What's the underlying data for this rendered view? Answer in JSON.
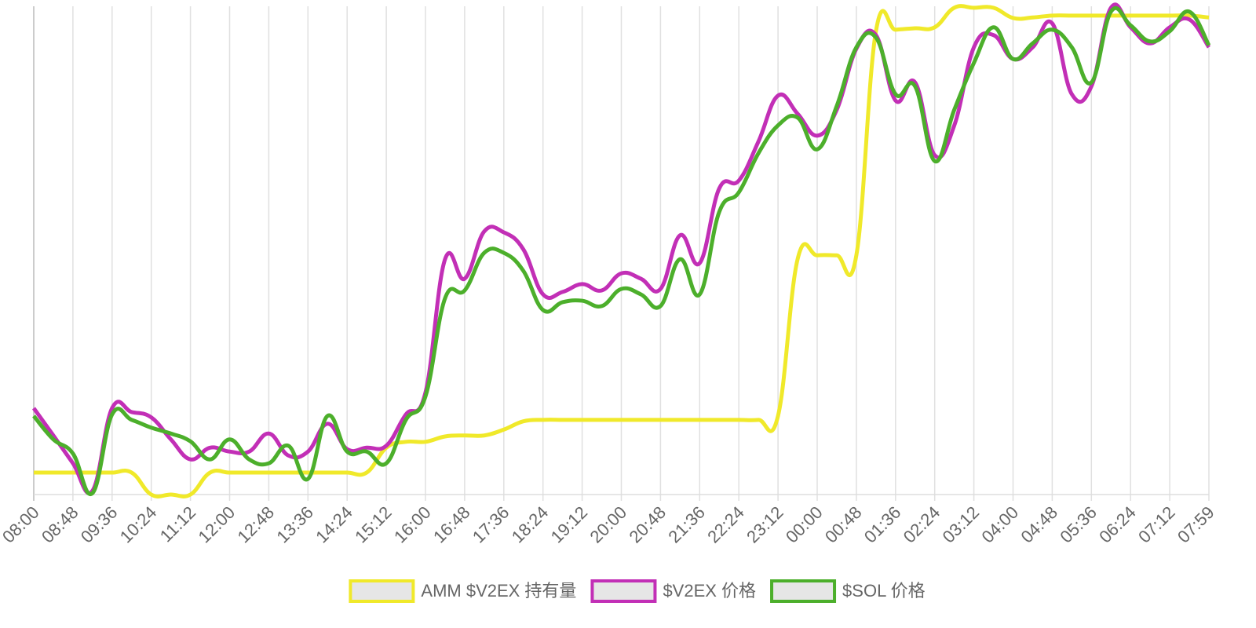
{
  "chart_data": {
    "type": "line",
    "categories": [
      "08:00",
      null,
      "08:48",
      null,
      "09:36",
      null,
      "10:24",
      null,
      "11:12",
      null,
      "12:00",
      null,
      "12:48",
      null,
      "13:36",
      null,
      "14:24",
      null,
      "15:12",
      null,
      "16:00",
      null,
      "16:48",
      null,
      "17:36",
      null,
      "18:24",
      null,
      "19:12",
      null,
      "20:00",
      null,
      "20:48",
      null,
      "21:36",
      null,
      "22:24",
      null,
      "23:12",
      null,
      "00:00",
      null,
      "00:48",
      null,
      "01:36",
      null,
      "02:24",
      null,
      "03:12",
      null,
      "04:00",
      null,
      "04:48",
      null,
      "05:36",
      null,
      "06:24",
      null,
      "07:12",
      null,
      "07:59"
    ],
    "ylim": [
      0,
      100
    ],
    "grid": true,
    "legend": "bottom",
    "series": [
      {
        "name": "AMM $V2EX 持有量",
        "color": "#f0e92a",
        "values": [
          4.5,
          4.5,
          4.5,
          4.5,
          4.5,
          4.5,
          0,
          0,
          0,
          4.5,
          4.5,
          4.5,
          4.5,
          4.5,
          4.5,
          4.5,
          4.5,
          4.5,
          9.6,
          10.8,
          10.8,
          11.9,
          12.1,
          12.1,
          13.3,
          15.0,
          15.3,
          15.3,
          15.3,
          15.3,
          15.3,
          15.3,
          15.3,
          15.3,
          15.3,
          15.3,
          15.3,
          15.3,
          16.1,
          48.2,
          49.0,
          49.0,
          49.0,
          94.9,
          95.2,
          95.5,
          95.7,
          99.7,
          99.7,
          99.7,
          97.6,
          97.7,
          98.1,
          98.1,
          98.1,
          98.1,
          98.1,
          98.1,
          98.1,
          98.1,
          97.7
        ]
      },
      {
        "name": "$V2EX 价格",
        "color": "#c22fb6",
        "values": [
          17.7,
          12.1,
          6.4,
          0.8,
          17.7,
          16.9,
          15.8,
          11.3,
          7.2,
          9.6,
          8.8,
          8.8,
          12.5,
          8.0,
          8.8,
          14.5,
          9.3,
          9.6,
          10.0,
          16.4,
          20.9,
          48.2,
          44.2,
          53.9,
          53.7,
          50.2,
          41.0,
          41.5,
          43.1,
          41.8,
          45.3,
          44.2,
          42.1,
          53.1,
          47.4,
          62.7,
          64.3,
          72.3,
          81.7,
          78.0,
          73.5,
          78.8,
          91.3,
          94.1,
          80.7,
          84.4,
          69.5,
          75.6,
          91.6,
          94.1,
          89.2,
          91.6,
          96.5,
          82.0,
          83.6,
          99.7,
          95.7,
          92.4,
          95.7,
          97.3,
          91.6
        ]
      },
      {
        "name": "$SOL 价格",
        "color": "#4caf2b",
        "values": [
          16.1,
          11.3,
          8.4,
          0.3,
          16.4,
          15.3,
          13.7,
          12.5,
          10.9,
          7.2,
          11.3,
          7.2,
          6.4,
          10.0,
          3.2,
          16.1,
          8.8,
          8.8,
          6.4,
          15.3,
          20.1,
          40.2,
          41.8,
          49.5,
          49.5,
          45.8,
          37.8,
          39.4,
          39.7,
          38.6,
          42.1,
          41.0,
          38.6,
          48.2,
          41.0,
          57.9,
          61.9,
          69.9,
          75.6,
          77.2,
          70.7,
          79.6,
          91.6,
          93.6,
          82.0,
          83.6,
          68.3,
          78.8,
          88.4,
          95.7,
          89.2,
          92.4,
          95.2,
          91.6,
          84.4,
          98.9,
          96.1,
          92.8,
          94.9,
          98.9,
          92.0
        ]
      }
    ]
  }
}
